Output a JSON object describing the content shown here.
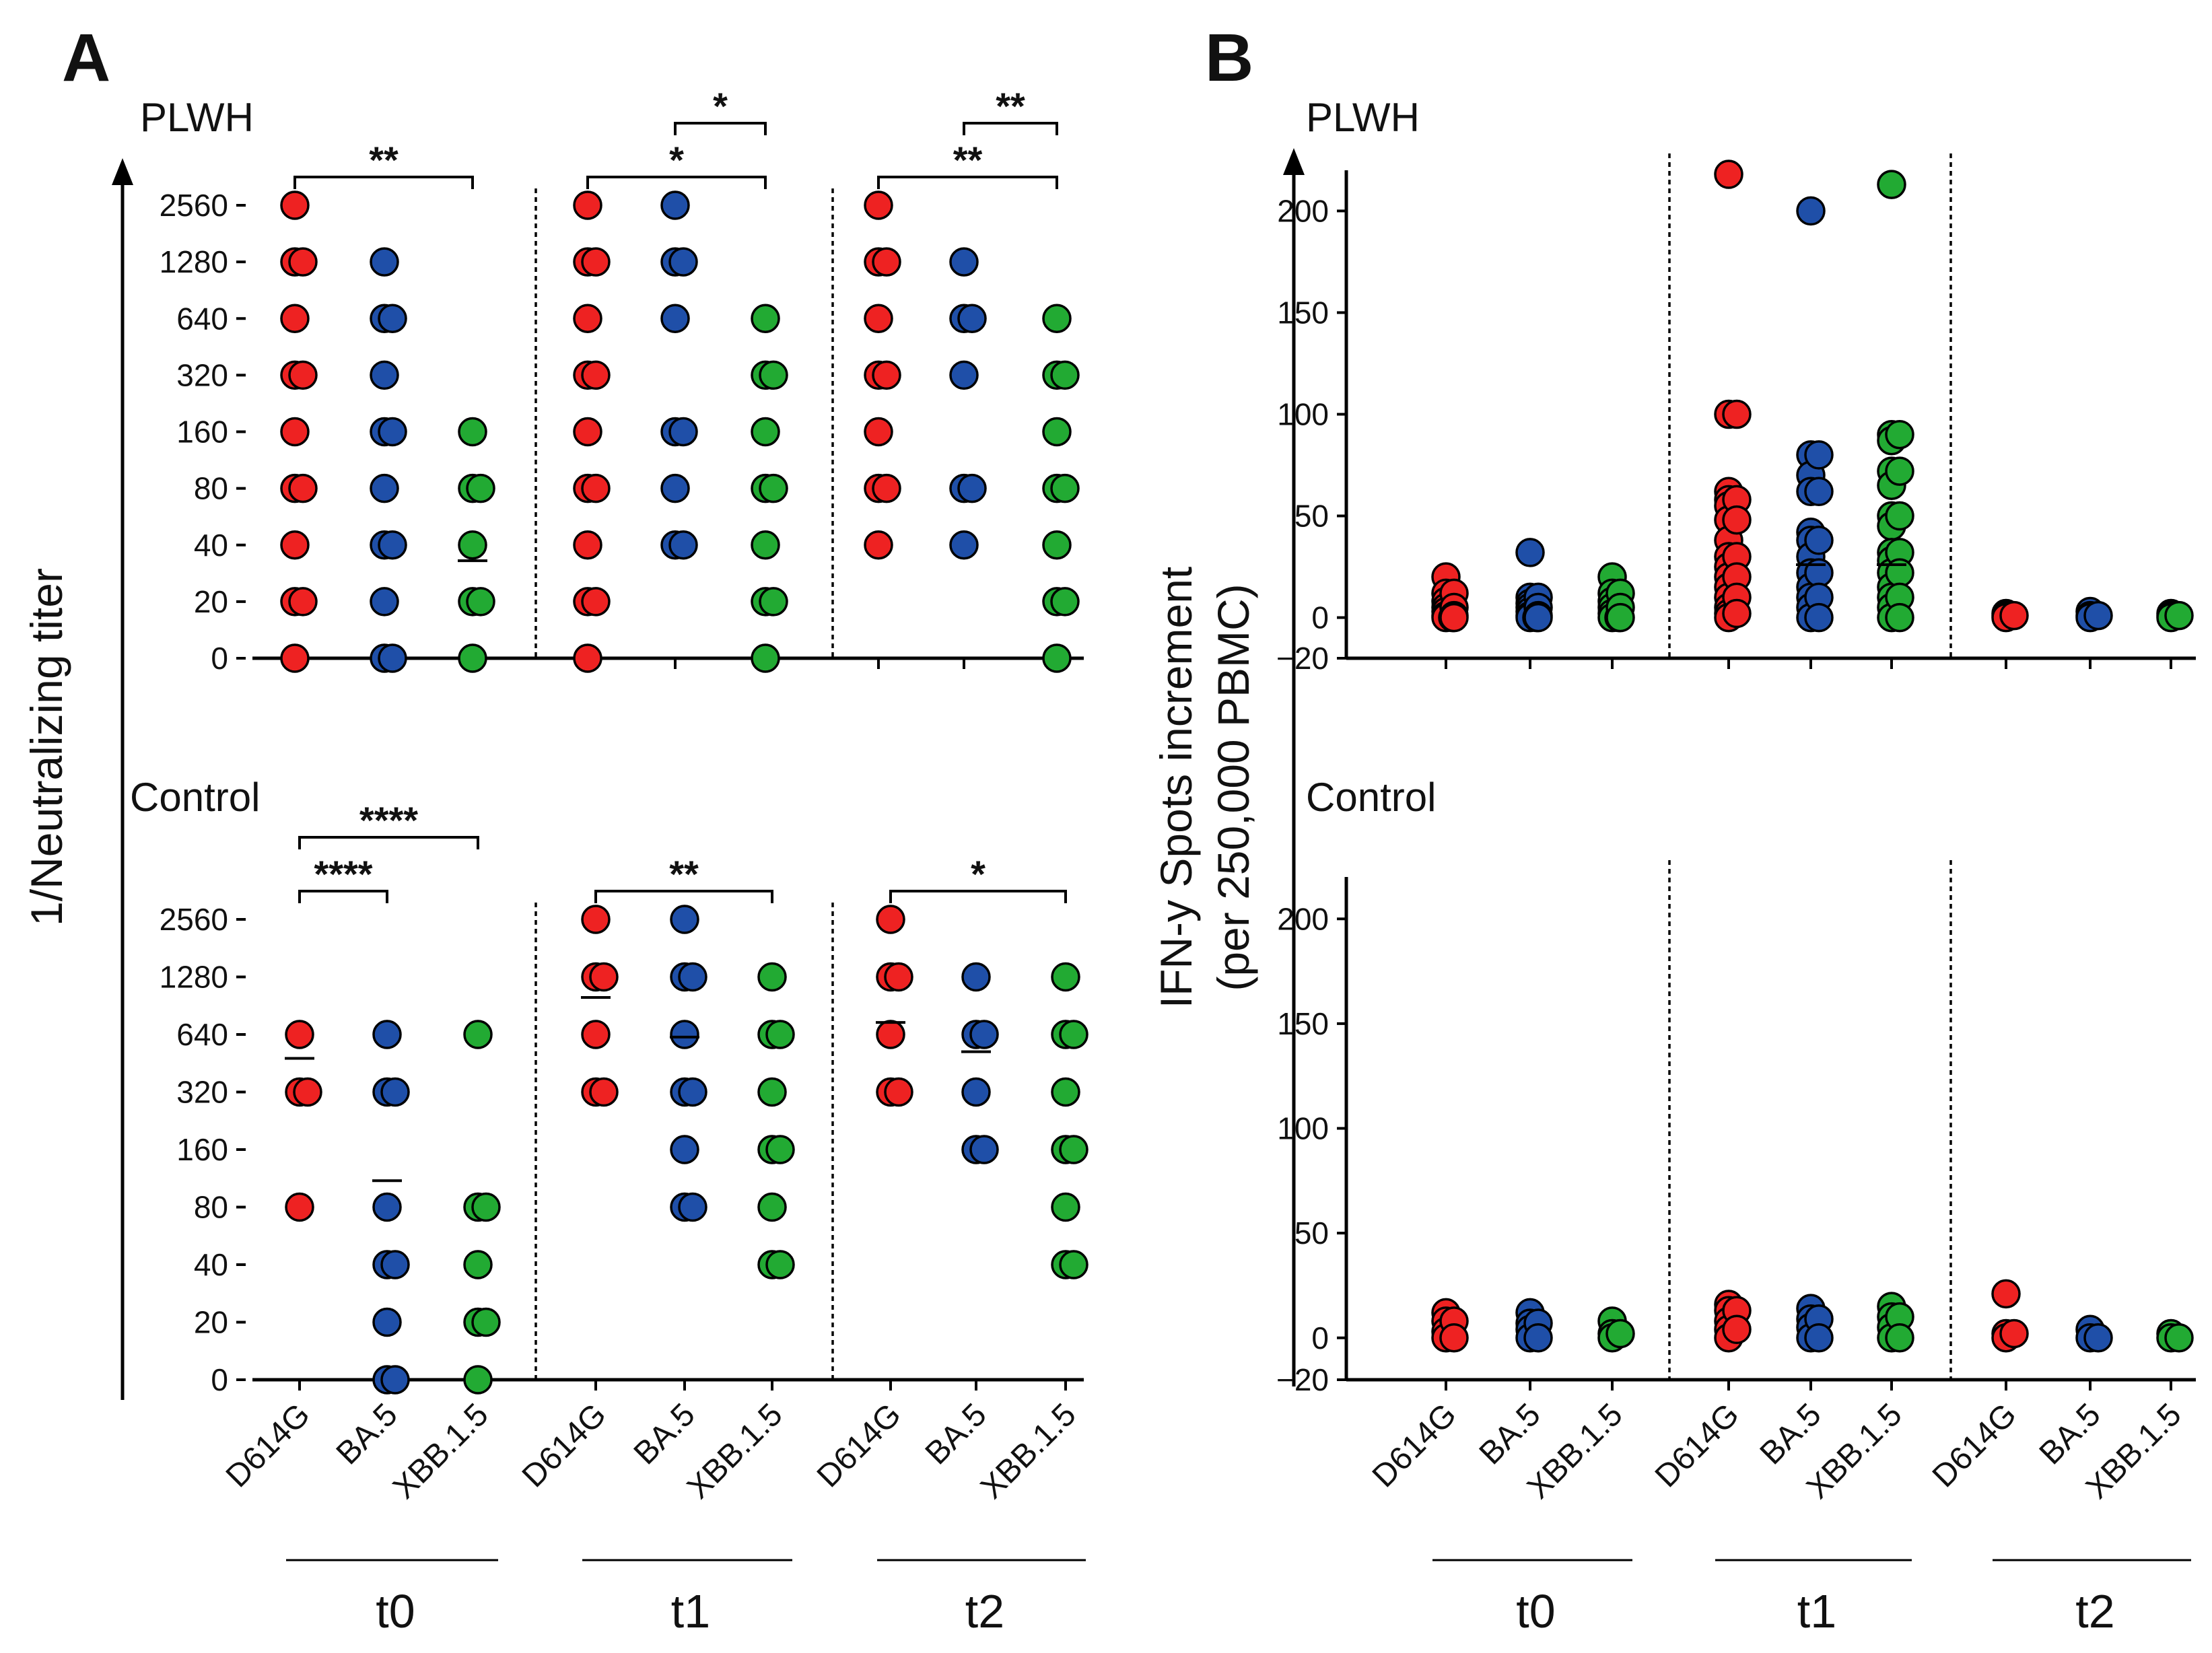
{
  "colors": {
    "D614G": "#ee2222",
    "BA.5": "#1f4fa8",
    "XBB.1.5": "#22aa33"
  },
  "panels": {
    "A": {
      "label": "A",
      "y_title": "1/Neutralizing titer",
      "group_labels": [
        "PLWH",
        "Control"
      ],
      "tick_labels": [
        "0",
        "20",
        "40",
        "80",
        "160",
        "320",
        "640",
        "1280",
        "2560"
      ]
    },
    "B": {
      "label": "B",
      "y_title_line1": "IFN-y Spots increment",
      "y_title_line2": "(per 250,000 PBMC)",
      "group_labels": [
        "PLWH",
        "Control"
      ],
      "tick_labels": [
        "−20",
        "0",
        "50",
        "100",
        "150",
        "200"
      ]
    }
  },
  "categories": [
    "D614G",
    "BA.5",
    "XBB.1.5"
  ],
  "timepoints": [
    "t0",
    "t1",
    "t2"
  ],
  "chart_data": [
    {
      "id": "A-PLWH",
      "type": "scatter",
      "panel": "A",
      "group": "PLWH",
      "ylabel": "1/Neutralizing titer",
      "y_scale": "log2 titer levels",
      "levels": [
        0,
        20,
        40,
        80,
        160,
        320,
        640,
        1280,
        2560
      ],
      "timepoints": [
        "t0",
        "t1",
        "t2"
      ],
      "categories": [
        "D614G",
        "BA.5",
        "XBB.1.5"
      ],
      "points": [
        [
          [
            2560,
            1280,
            640,
            320,
            160,
            80,
            40,
            20,
            0
          ],
          [
            1280,
            640,
            320,
            160,
            80,
            40,
            20,
            0
          ],
          [
            160,
            80,
            40,
            20,
            0
          ]
        ],
        [
          [
            2560,
            1280,
            640,
            320,
            160,
            80,
            40,
            20,
            0
          ],
          [
            2560,
            1280,
            640,
            160,
            80,
            40
          ],
          [
            640,
            320,
            160,
            80,
            40,
            20,
            0
          ]
        ],
        [
          [
            2560,
            1280,
            640,
            320,
            160,
            80,
            40
          ],
          [
            1280,
            640,
            320,
            80,
            40
          ],
          [
            640,
            320,
            160,
            80,
            40,
            20,
            0
          ]
        ]
      ],
      "means": [
        [
          null,
          null,
          33
        ],
        [
          null,
          null,
          null
        ],
        [
          null,
          null,
          null
        ]
      ],
      "significance": [
        {
          "timepoint": "t0",
          "from": "D614G",
          "to": "XBB.1.5",
          "stars": "**",
          "tier": 0
        },
        {
          "timepoint": "t1",
          "from": "D614G",
          "to": "XBB.1.5",
          "stars": "*",
          "tier": 0
        },
        {
          "timepoint": "t1",
          "from": "BA.5",
          "to": "XBB.1.5",
          "stars": "*",
          "tier": 1
        },
        {
          "timepoint": "t2",
          "from": "D614G",
          "to": "XBB.1.5",
          "stars": "**",
          "tier": 0
        },
        {
          "timepoint": "t2",
          "from": "BA.5",
          "to": "XBB.1.5",
          "stars": "**",
          "tier": 1
        }
      ]
    },
    {
      "id": "A-Control",
      "type": "scatter",
      "panel": "A",
      "group": "Control",
      "ylabel": "1/Neutralizing titer",
      "y_scale": "log2 titer levels",
      "levels": [
        0,
        20,
        40,
        80,
        160,
        320,
        640,
        1280,
        2560
      ],
      "timepoints": [
        "t0",
        "t1",
        "t2"
      ],
      "categories": [
        "D614G",
        "BA.5",
        "XBB.1.5"
      ],
      "points": [
        [
          [
            640,
            320,
            80
          ],
          [
            640,
            320,
            80,
            40,
            20,
            0
          ],
          [
            640,
            80,
            40,
            20,
            0
          ]
        ],
        [
          [
            2560,
            1280,
            640,
            320
          ],
          [
            2560,
            1280,
            640,
            320,
            160,
            80
          ],
          [
            1280,
            640,
            320,
            160,
            80,
            40
          ]
        ],
        [
          [
            2560,
            1280,
            640,
            320
          ],
          [
            1280,
            640,
            320,
            160
          ],
          [
            1280,
            640,
            320,
            160,
            80,
            40
          ]
        ]
      ],
      "means": [
        [
          480,
          110,
          null
        ],
        [
          1000,
          620,
          null
        ],
        [
          740,
          520,
          null
        ]
      ],
      "significance": [
        {
          "timepoint": "t0",
          "from": "D614G",
          "to": "BA.5",
          "stars": "****",
          "tier": 0
        },
        {
          "timepoint": "t0",
          "from": "D614G",
          "to": "XBB.1.5",
          "stars": "****",
          "tier": 1
        },
        {
          "timepoint": "t1",
          "from": "D614G",
          "to": "XBB.1.5",
          "stars": "**",
          "tier": 0
        },
        {
          "timepoint": "t2",
          "from": "D614G",
          "to": "XBB.1.5",
          "stars": "*",
          "tier": 0
        }
      ]
    },
    {
      "id": "B-PLWH",
      "type": "scatter",
      "panel": "B",
      "group": "PLWH",
      "ylabel": "IFN-y Spots increment (per 250,000 PBMC)",
      "ylim": [
        -20,
        220
      ],
      "yticks": [
        -20,
        0,
        50,
        100,
        150,
        200
      ],
      "timepoints": [
        "t0",
        "t1",
        "t2"
      ],
      "categories": [
        "D614G",
        "BA.5",
        "XBB.1.5"
      ],
      "points": [
        [
          [
            20,
            12,
            8,
            5,
            3,
            1,
            0,
            0
          ],
          [
            32,
            10,
            7,
            5,
            3,
            1,
            0,
            0
          ],
          [
            20,
            12,
            8,
            5,
            2,
            0,
            0
          ]
        ],
        [
          [
            218,
            100,
            62,
            58,
            55,
            48,
            38,
            30,
            25,
            20,
            15,
            10,
            5,
            2,
            0
          ],
          [
            200,
            80,
            70,
            62,
            42,
            38,
            30,
            22,
            15,
            10,
            5,
            0
          ],
          [
            213,
            90,
            87,
            72,
            65,
            50,
            45,
            32,
            28,
            22,
            15,
            10,
            5,
            0
          ]
        ],
        [
          [
            2,
            1,
            0
          ],
          [
            3,
            1,
            0
          ],
          [
            2,
            1,
            0
          ]
        ]
      ],
      "means": [
        [
          null,
          null,
          null
        ],
        [
          null,
          26,
          26
        ],
        [
          null,
          null,
          null
        ]
      ]
    },
    {
      "id": "B-Control",
      "type": "scatter",
      "panel": "B",
      "group": "Control",
      "ylabel": "IFN-y Spots increment (per 250,000 PBMC)",
      "ylim": [
        -20,
        220
      ],
      "yticks": [
        -20,
        0,
        50,
        100,
        150,
        200
      ],
      "timepoints": [
        "t0",
        "t1",
        "t2"
      ],
      "categories": [
        "D614G",
        "BA.5",
        "XBB.1.5"
      ],
      "points": [
        [
          [
            12,
            8,
            3,
            0
          ],
          [
            12,
            7,
            4,
            0
          ],
          [
            8,
            2,
            0
          ]
        ],
        [
          [
            16,
            13,
            8,
            4,
            0
          ],
          [
            14,
            9,
            5,
            0
          ],
          [
            15,
            10,
            5,
            0
          ]
        ],
        [
          [
            21,
            2,
            0
          ],
          [
            4,
            0
          ],
          [
            2,
            0
          ]
        ]
      ],
      "means": [
        [
          null,
          null,
          null
        ],
        [
          null,
          null,
          null
        ],
        [
          null,
          null,
          null
        ]
      ]
    }
  ]
}
